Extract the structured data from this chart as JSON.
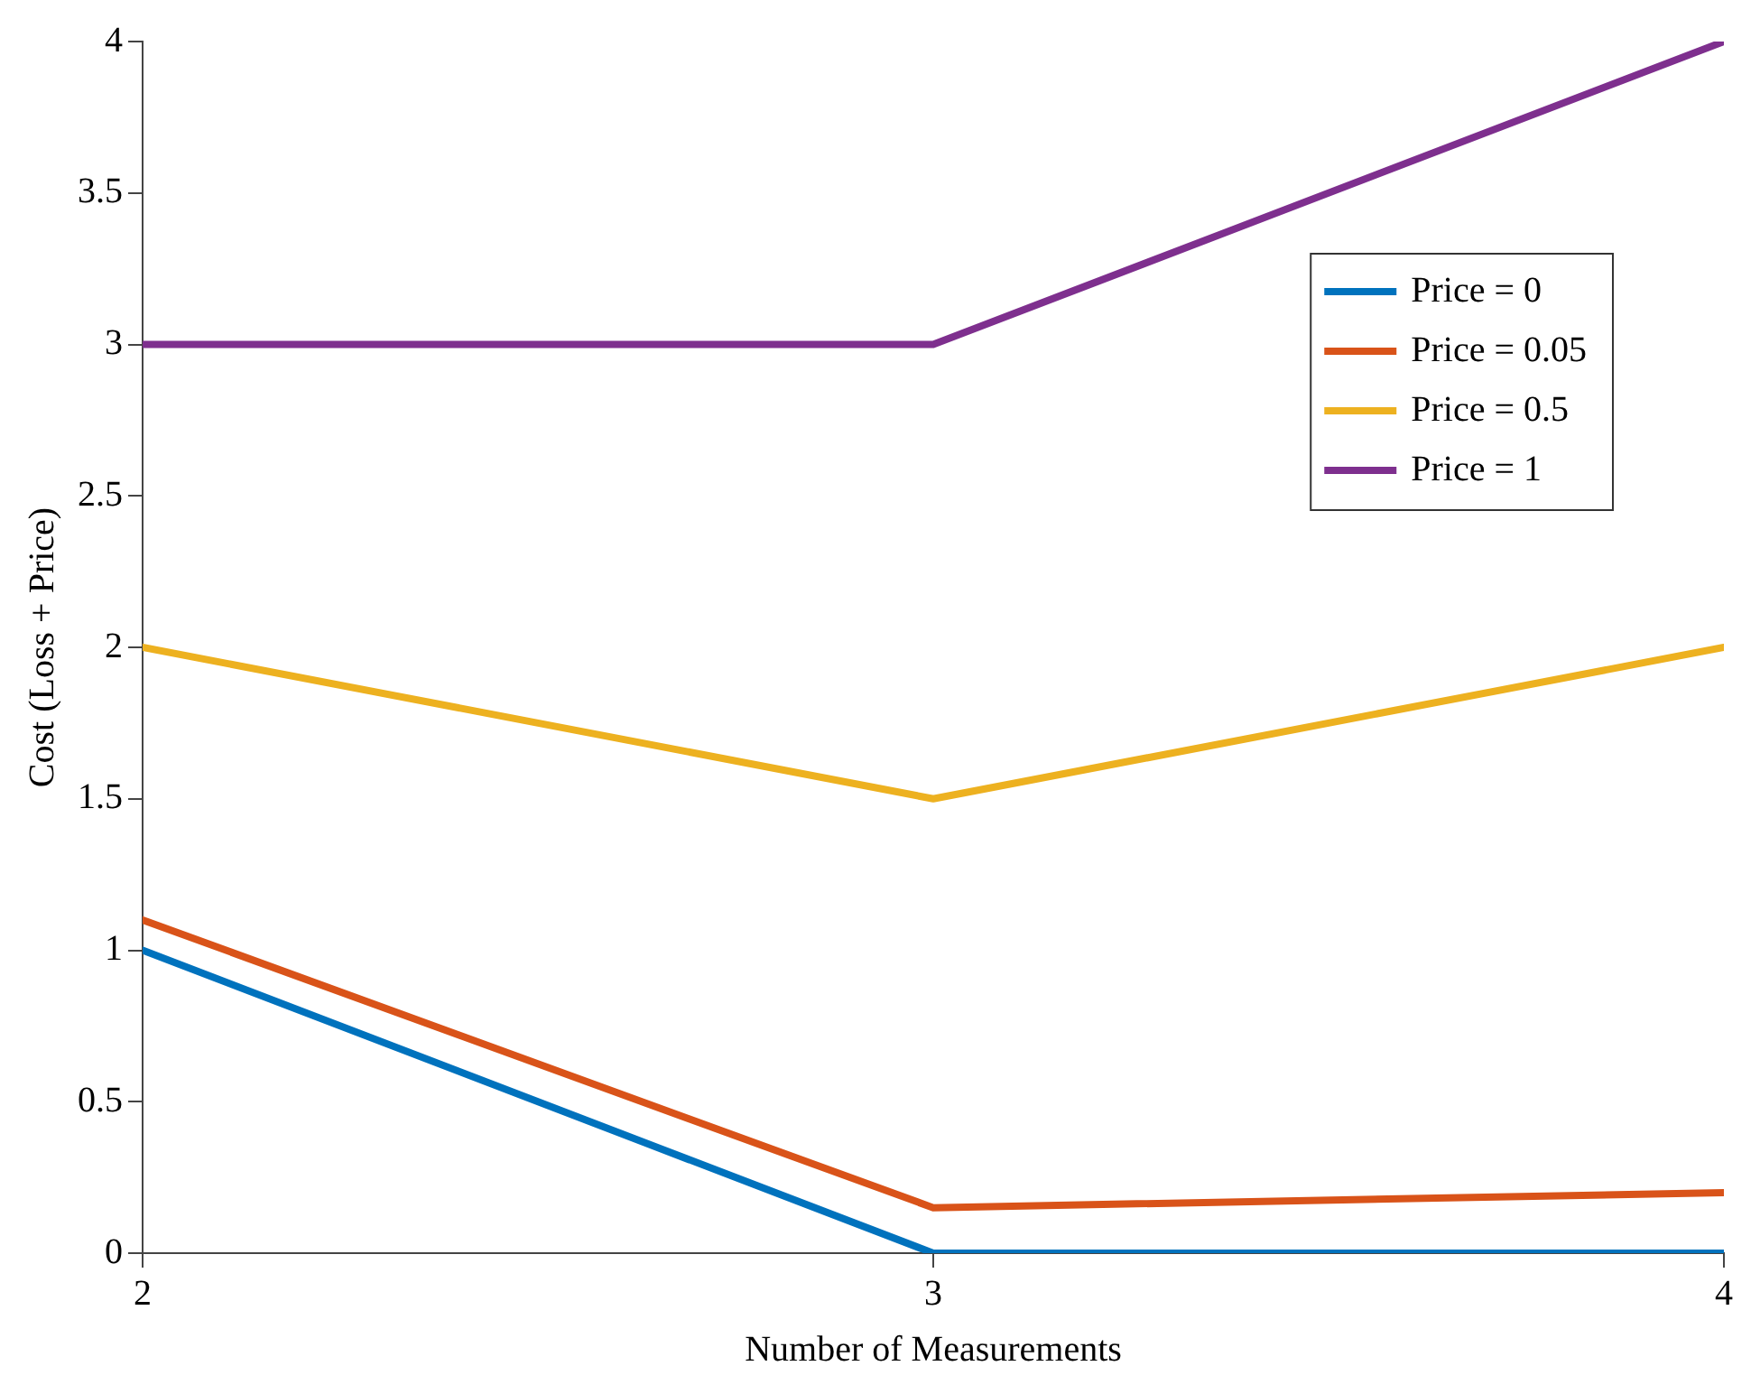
{
  "chart_data": {
    "type": "line",
    "xlabel": "Number of Measurements",
    "ylabel": "Cost (Loss + Price)",
    "x": [
      2,
      3,
      4
    ],
    "series": [
      {
        "name": "Price = 0",
        "color": "#0072bd",
        "values": [
          1,
          0,
          0
        ]
      },
      {
        "name": "Price = 0.05",
        "color": "#d95319",
        "values": [
          1.1,
          0.15,
          0.2
        ]
      },
      {
        "name": "Price = 0.5",
        "color": "#edb120",
        "values": [
          2,
          1.5,
          2
        ]
      },
      {
        "name": "Price = 1",
        "color": "#7e2f8e",
        "values": [
          3,
          3,
          4
        ]
      }
    ],
    "xlim": [
      2,
      4
    ],
    "xticks": [
      2,
      3,
      4
    ],
    "ylim": [
      0,
      4
    ],
    "yticks": [
      0,
      0.5,
      1,
      1.5,
      2,
      2.5,
      3,
      3.5,
      4
    ],
    "grid": false,
    "legend": "top right",
    "marker": "none",
    "line_style": "solid"
  }
}
